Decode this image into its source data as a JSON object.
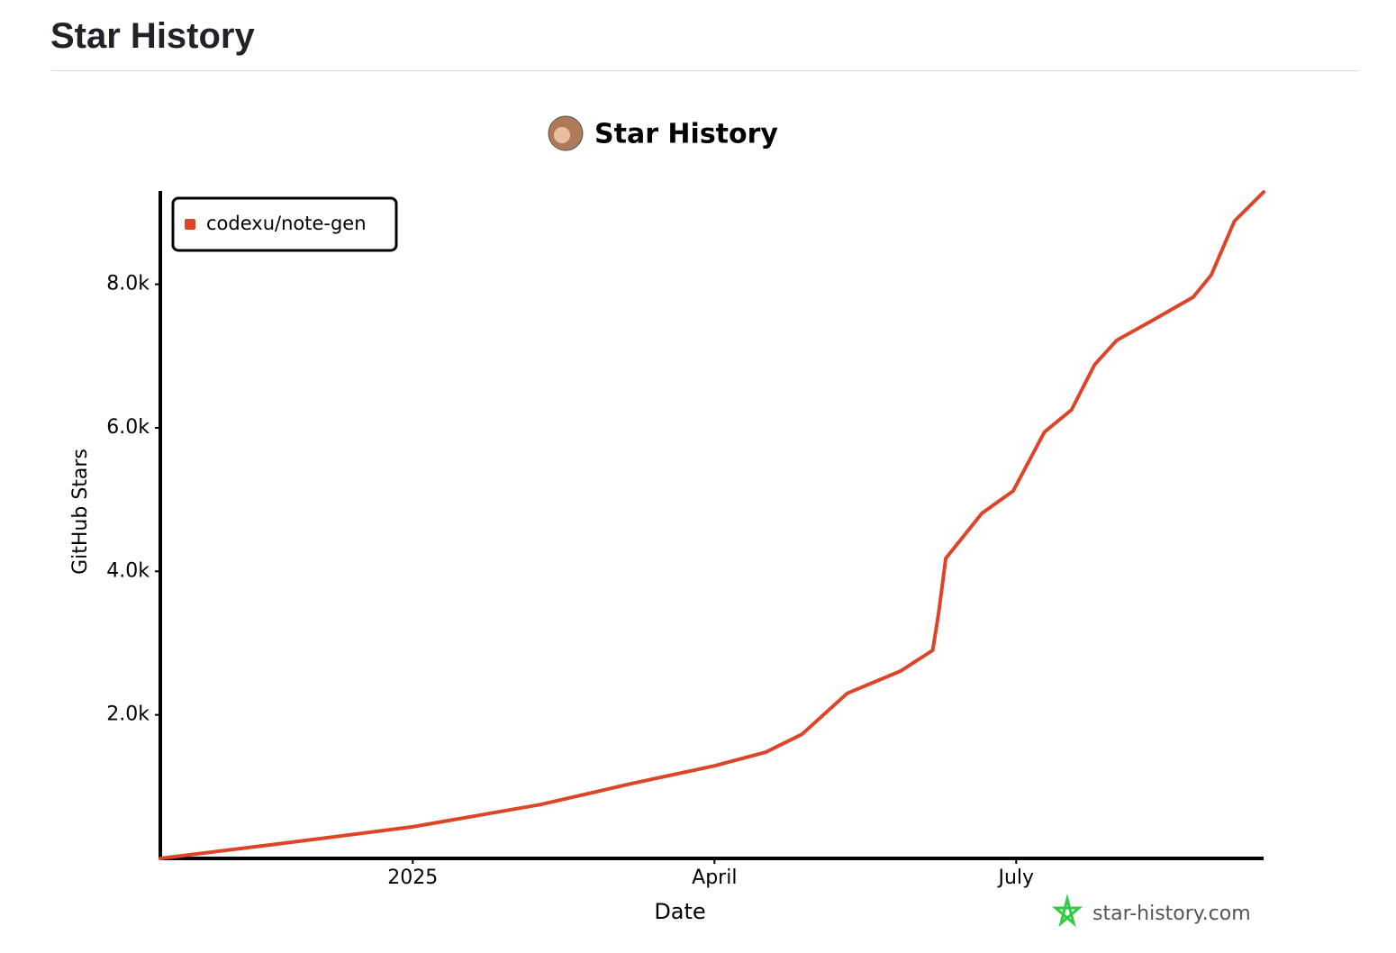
{
  "header": {
    "title": "Star History"
  },
  "chart_data": {
    "type": "line",
    "title": "Star History",
    "xlabel": "Date",
    "ylabel": "GitHub Stars",
    "watermark": "star-history.com",
    "x": [
      -2.51,
      -1.41,
      0,
      1.27,
      2.17,
      3.0,
      3.51,
      3.87,
      4.32,
      4.85,
      5.17,
      5.23,
      5.3,
      5.66,
      5.97,
      6.28,
      6.55,
      6.78,
      7.0,
      7.36,
      7.76,
      7.94,
      8.17,
      8.46
    ],
    "series": [
      {
        "name": "codexu/note-gen",
        "color": "#dd4528",
        "values": [
          0,
          190,
          440,
          750,
          1040,
          1290,
          1480,
          1730,
          2300,
          2610,
          2900,
          3430,
          4180,
          4810,
          5120,
          5940,
          6250,
          6880,
          7220,
          7500,
          7820,
          8130,
          8880,
          9285
        ]
      }
    ],
    "xlim": [
      -2.51,
      8.46
    ],
    "xticks": [
      {
        "value": 0,
        "label": "2025"
      },
      {
        "value": 3,
        "label": "April"
      },
      {
        "value": 6,
        "label": "July"
      }
    ],
    "ylim": [
      0,
      9300
    ],
    "yticks": [
      {
        "value": 2000,
        "label": "2.0k"
      },
      {
        "value": 4000,
        "label": "4.0k"
      },
      {
        "value": 6000,
        "label": "6.0k"
      },
      {
        "value": 8000,
        "label": "8.0k"
      }
    ],
    "legend": "upper left"
  }
}
